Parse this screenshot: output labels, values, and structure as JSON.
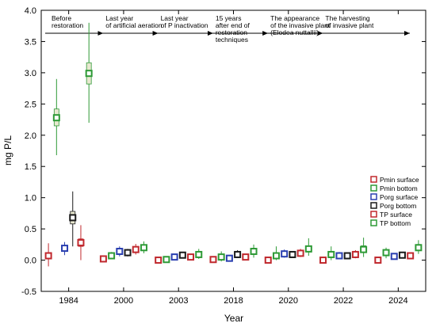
{
  "chart_data": {
    "type": "scatter",
    "xlabel": "Year",
    "ylabel": "mg P/L",
    "ylim": [
      -0.5,
      4.0
    ],
    "yticks": [
      "-0.5",
      "0.0",
      "0.5",
      "1.0",
      "1.5",
      "2.0",
      "2.5",
      "3.0",
      "3.5",
      "4.0"
    ],
    "categories": [
      "1984",
      "2000",
      "2003",
      "2018",
      "2020",
      "2022",
      "2024"
    ],
    "phases": [
      {
        "lines": [
          "Before",
          "restoration"
        ]
      },
      {
        "lines": [
          "Last year",
          "of artificial aeration"
        ]
      },
      {
        "lines": [
          "Last year",
          "of P inactivation"
        ]
      },
      {
        "lines": [
          "15 years",
          "after end of",
          "restoration",
          "techniques"
        ]
      },
      {
        "lines": [
          "The appearance",
          "of the invasive plant",
          "(Elodea nuttallii)"
        ]
      },
      {
        "lines": [
          "The harvesting",
          "of invasive plant"
        ]
      }
    ],
    "series": [
      {
        "name": "Pmin surface",
        "color": "#c0282d",
        "values": [
          0.07,
          0.02,
          0.0,
          0.01,
          0.0,
          0.0,
          0.0
        ],
        "box_low": [
          0.03,
          0.01,
          -0.01,
          -0.01,
          -0.01,
          -0.01,
          -0.01
        ],
        "box_high": [
          0.12,
          0.04,
          0.01,
          0.03,
          0.01,
          0.01,
          0.01
        ],
        "whisker_low": [
          -0.1,
          -0.01,
          -0.03,
          -0.03,
          -0.03,
          -0.03,
          -0.03
        ],
        "whisker_high": [
          0.27,
          0.06,
          0.03,
          0.06,
          0.03,
          0.03,
          0.03
        ]
      },
      {
        "name": "Pmin bottom",
        "color": "#2e9a36",
        "values": [
          2.28,
          0.07,
          0.01,
          0.05,
          0.07,
          0.09,
          0.12
        ],
        "box_low": [
          2.15,
          0.05,
          0.0,
          0.03,
          0.04,
          0.05,
          0.08
        ],
        "box_high": [
          2.42,
          0.09,
          0.03,
          0.08,
          0.11,
          0.13,
          0.16
        ],
        "whisker_low": [
          1.68,
          0.02,
          -0.02,
          -0.02,
          0.0,
          0.0,
          0.03
        ],
        "whisker_high": [
          2.9,
          0.13,
          0.05,
          0.14,
          0.22,
          0.22,
          0.2
        ]
      },
      {
        "name": "Porg surface",
        "color": "#2a3fb0",
        "values": [
          0.19,
          0.14,
          0.05,
          0.03,
          0.1,
          0.07,
          0.06
        ],
        "box_low": [
          0.14,
          0.1,
          0.03,
          0.01,
          0.07,
          0.05,
          0.04
        ],
        "box_high": [
          0.23,
          0.17,
          0.07,
          0.05,
          0.13,
          0.09,
          0.08
        ],
        "whisker_low": [
          0.08,
          0.06,
          0.01,
          -0.01,
          0.04,
          0.02,
          0.02
        ],
        "whisker_high": [
          0.29,
          0.22,
          0.1,
          0.08,
          0.17,
          0.13,
          0.11
        ]
      },
      {
        "name": "Porg bottom",
        "color": "#1a1a1a",
        "values": [
          0.68,
          0.12,
          0.08,
          0.09,
          0.09,
          0.07,
          0.08
        ],
        "box_low": [
          0.58,
          0.09,
          0.06,
          0.07,
          0.07,
          0.05,
          0.06
        ],
        "box_high": [
          0.78,
          0.15,
          0.1,
          0.12,
          0.11,
          0.09,
          0.1
        ],
        "whisker_low": [
          0.22,
          0.06,
          0.04,
          0.04,
          0.04,
          0.03,
          0.04
        ],
        "whisker_high": [
          1.1,
          0.18,
          0.12,
          0.16,
          0.14,
          0.12,
          0.12
        ]
      },
      {
        "name": "TP surface",
        "color": "#c0282d",
        "values": [
          0.28,
          0.17,
          0.05,
          0.05,
          0.11,
          0.09,
          0.07
        ],
        "box_low": [
          0.22,
          0.14,
          0.03,
          0.03,
          0.08,
          0.06,
          0.05
        ],
        "box_high": [
          0.34,
          0.2,
          0.07,
          0.07,
          0.14,
          0.12,
          0.09
        ],
        "whisker_low": [
          0.0,
          0.09,
          0.01,
          0.01,
          0.05,
          0.03,
          0.03
        ],
        "whisker_high": [
          0.56,
          0.26,
          0.09,
          0.1,
          0.18,
          0.16,
          0.12
        ]
      },
      {
        "name": "TP bottom",
        "color": "#2e9a36",
        "values": [
          2.99,
          0.2,
          0.09,
          0.14,
          0.18,
          0.17,
          0.2
        ],
        "box_low": [
          2.82,
          0.16,
          0.06,
          0.1,
          0.13,
          0.12,
          0.16
        ],
        "box_high": [
          3.16,
          0.24,
          0.13,
          0.18,
          0.23,
          0.23,
          0.25
        ],
        "whisker_low": [
          2.2,
          0.11,
          0.02,
          0.04,
          0.07,
          0.05,
          0.1
        ],
        "whisker_high": [
          3.8,
          0.3,
          0.18,
          0.25,
          0.35,
          0.36,
          0.32
        ]
      }
    ],
    "legend_position": "right",
    "grid": false
  }
}
